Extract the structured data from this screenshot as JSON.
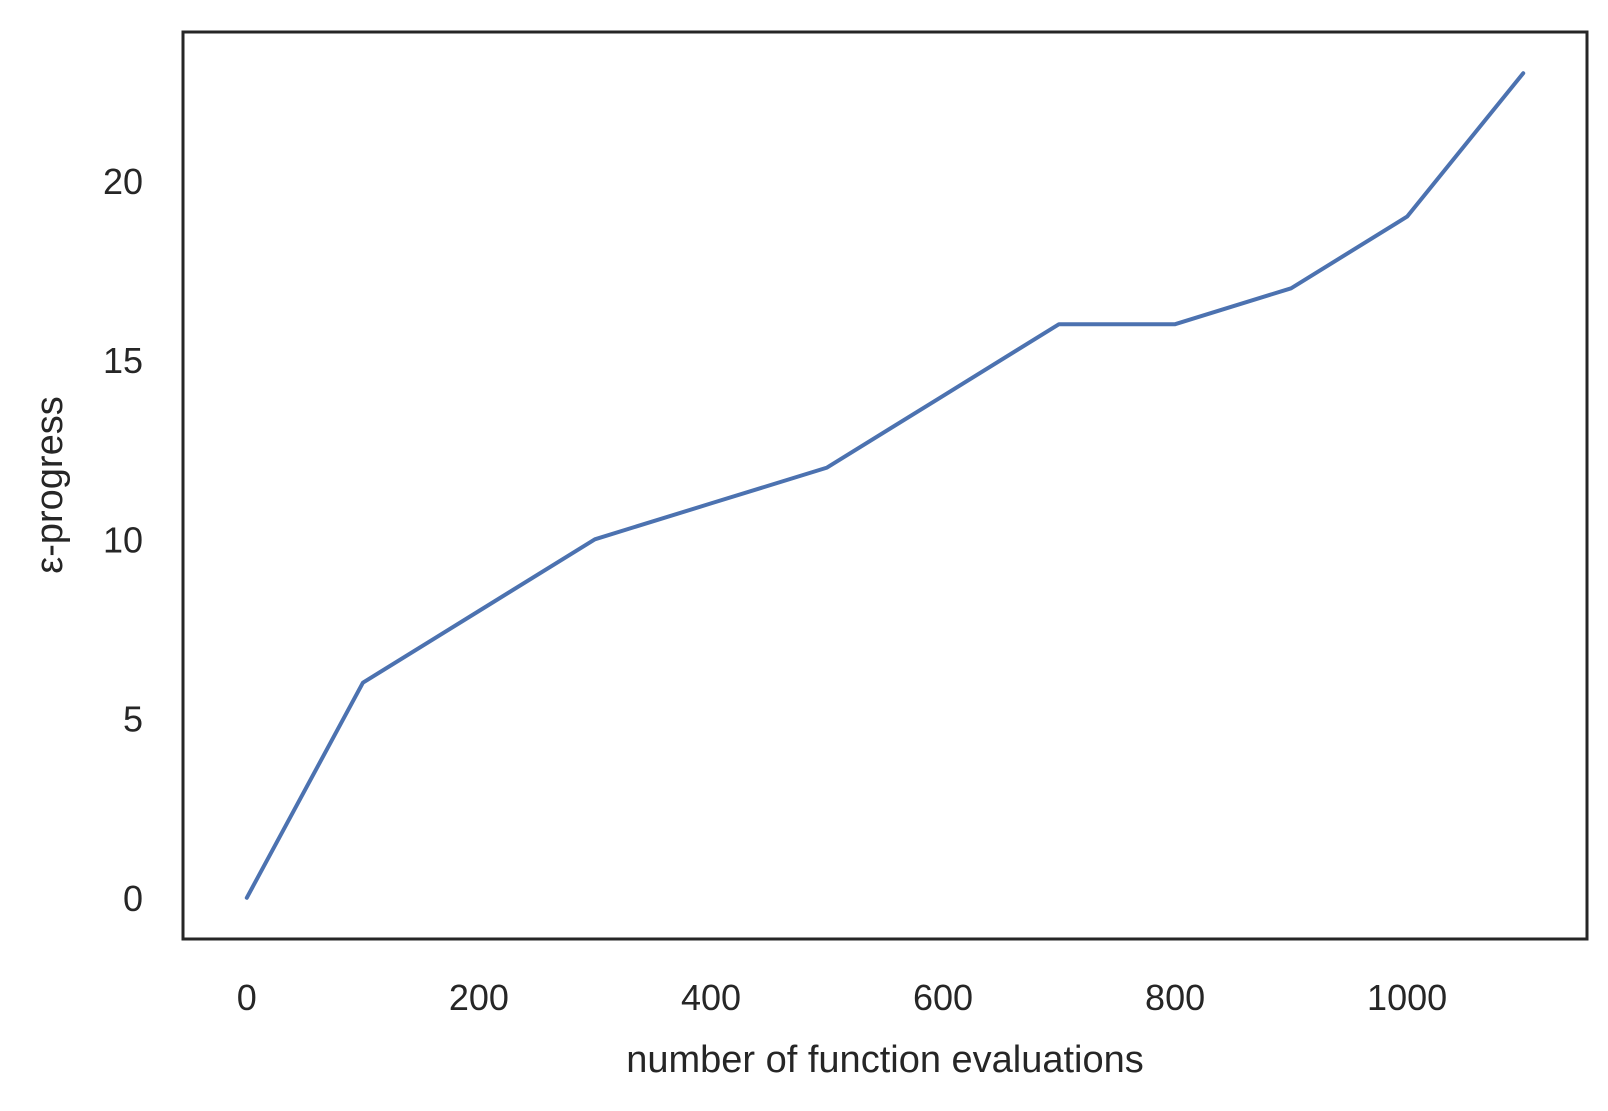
{
  "chart_data": {
    "type": "line",
    "title": "",
    "xlabel": "number of function evaluations",
    "ylabel": "ε-progress",
    "xlim": [
      -55,
      1155
    ],
    "ylim": [
      -1.15,
      24.15
    ],
    "xticks": [
      0,
      200,
      400,
      600,
      800,
      1000
    ],
    "yticks": [
      0,
      5,
      10,
      15,
      20
    ],
    "xtick_labels": [
      "0",
      "200",
      "400",
      "600",
      "800",
      "1000"
    ],
    "ytick_labels": [
      "0",
      "5",
      "10",
      "15",
      "20"
    ],
    "grid": false,
    "legend": "none",
    "series": [
      {
        "color": "#4c72b0",
        "x": [
          0,
          100,
          200,
          300,
          400,
          500,
          600,
          700,
          800,
          900,
          1000,
          1100
        ],
        "y": [
          0,
          6,
          8,
          10,
          11,
          12,
          14,
          16,
          16,
          17,
          19,
          23
        ]
      }
    ]
  }
}
